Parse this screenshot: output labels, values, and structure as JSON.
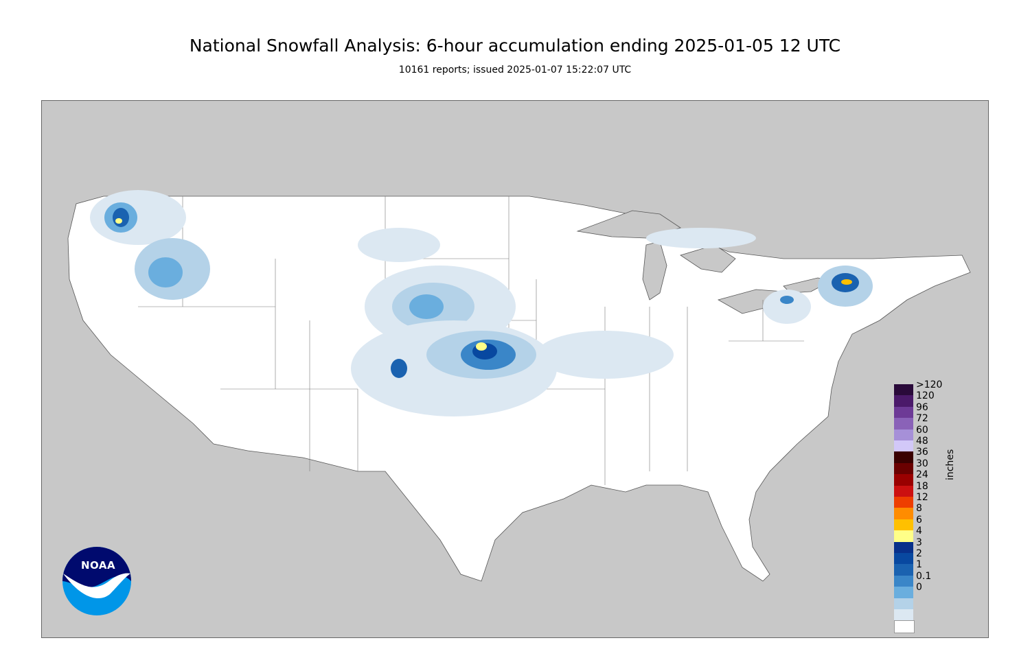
{
  "header": {
    "title": "National Snowfall Analysis: 6-hour accumulation ending 2025-01-05 12 UTC",
    "subtitle": "10161 reports; issued 2025-01-07 15:22:07 UTC"
  },
  "legend": {
    "units": "inches",
    "items": [
      {
        "label": ">120",
        "color": "#2a0a3a"
      },
      {
        "label": "120",
        "color": "#4b1a6a"
      },
      {
        "label": "96",
        "color": "#6d3a96"
      },
      {
        "label": "72",
        "color": "#8a62b8"
      },
      {
        "label": "60",
        "color": "#a690d8"
      },
      {
        "label": "48",
        "color": "#d2c8f8"
      },
      {
        "label": "36",
        "color": "#3a0000"
      },
      {
        "label": "30",
        "color": "#6a0000"
      },
      {
        "label": "24",
        "color": "#9a0000"
      },
      {
        "label": "18",
        "color": "#cc1010"
      },
      {
        "label": "12",
        "color": "#ee3e00"
      },
      {
        "label": "8",
        "color": "#ff8c00"
      },
      {
        "label": "6",
        "color": "#ffc000"
      },
      {
        "label": "4",
        "color": "#ffff88"
      },
      {
        "label": "3",
        "color": "#08308a"
      },
      {
        "label": "2",
        "color": "#0848a0"
      },
      {
        "label": "1",
        "color": "#1a62b0"
      },
      {
        "label": "0.1",
        "color": "#3a86c8"
      },
      {
        "label": "0",
        "color": "#6aaede"
      }
    ],
    "extra_colors": [
      "#b4d2e8",
      "#dce8f2",
      "#ffffff"
    ]
  },
  "logo": {
    "text": "NOAA"
  },
  "colors": {
    "background_land": "#c8c8c8",
    "conus": "#ffffff",
    "border": "#666666"
  }
}
